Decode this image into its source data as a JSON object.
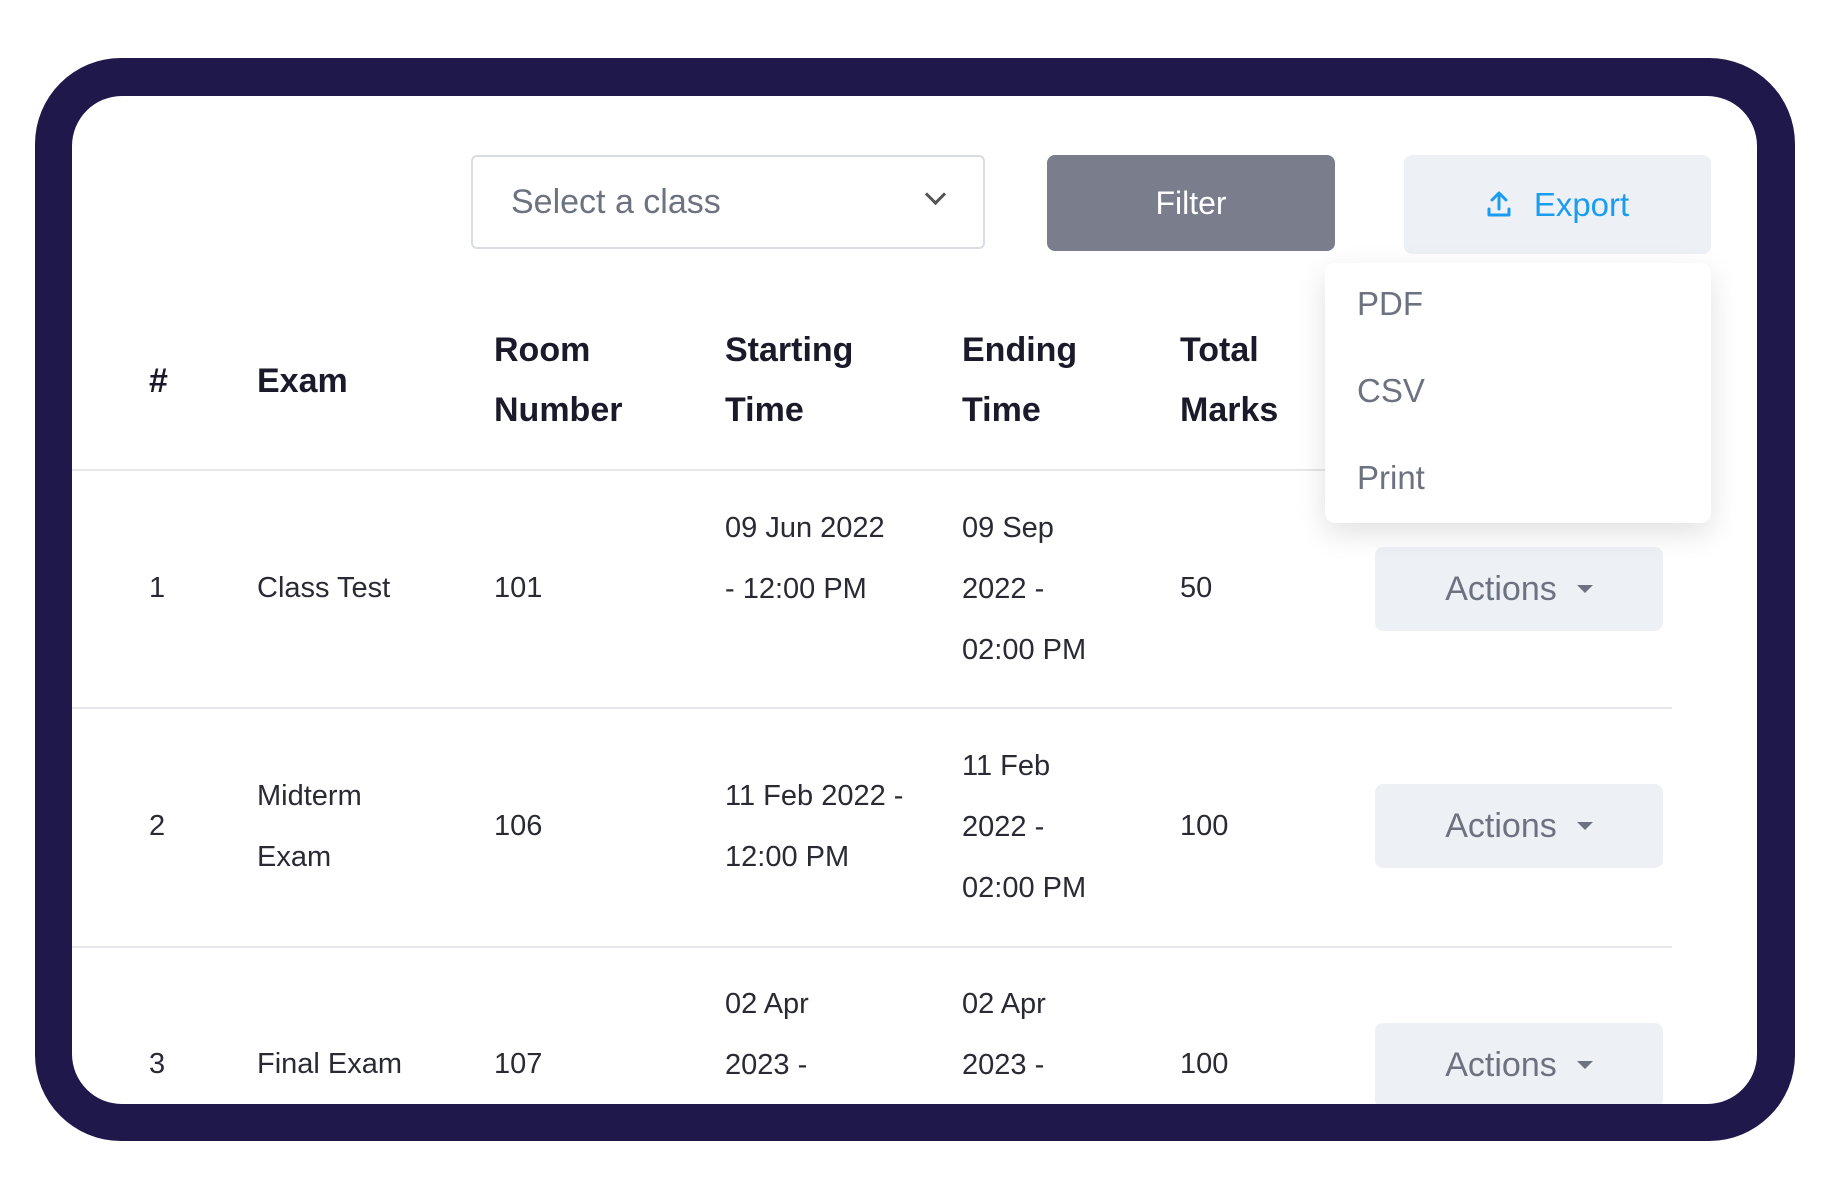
{
  "toolbar": {
    "select_placeholder": "Select a class",
    "filter_label": "Filter",
    "export_label": "Export"
  },
  "export_menu": [
    "PDF",
    "CSV",
    "Print"
  ],
  "table": {
    "headers": [
      "#",
      "Exam",
      "Room Number",
      "Starting Time",
      "Ending Time",
      "Total Marks"
    ],
    "rows": [
      {
        "num": "1",
        "exam": "Class Test",
        "room": "101",
        "start": "09 Jun 2022 - 12:00 PM",
        "end": "09 Sep 2022 - 02:00 PM",
        "marks": "50",
        "action": "Actions"
      },
      {
        "num": "2",
        "exam": "Midterm Exam",
        "room": "106",
        "start": "11 Feb 2022 - 12:00 PM",
        "end": "11 Feb 2022 - 02:00 PM",
        "marks": "100",
        "action": "Actions"
      },
      {
        "num": "3",
        "exam": "Final Exam",
        "room": "107",
        "start": "02 Apr 2023 -",
        "end": "02 Apr 2023 -",
        "marks": "100",
        "action": "Actions"
      }
    ]
  },
  "colors": {
    "frame": "#1f184b",
    "filter": "#7a7d8c",
    "accent": "#1a9cf0",
    "button_bg": "#edf1f5"
  }
}
